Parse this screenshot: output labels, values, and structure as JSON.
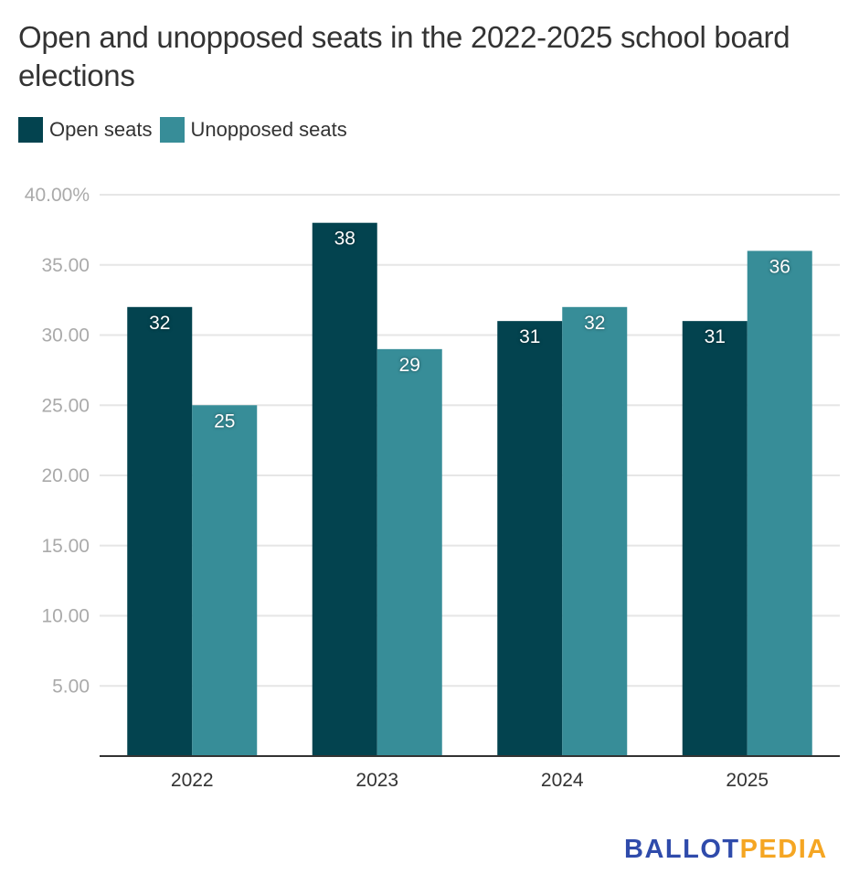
{
  "chart_data": {
    "type": "bar",
    "title": "Open and unopposed seats in the 2022-2025 school board elections",
    "xlabel": "",
    "ylabel": "",
    "categories": [
      "2022",
      "2023",
      "2024",
      "2025"
    ],
    "series": [
      {
        "name": "Open seats",
        "color": "#03434f",
        "values": [
          32,
          38,
          31,
          31
        ]
      },
      {
        "name": "Unopposed seats",
        "color": "#378d98",
        "values": [
          25,
          29,
          32,
          36
        ]
      }
    ],
    "ylim": [
      0,
      40
    ],
    "yticks": [
      {
        "value": 5,
        "label": "5.00"
      },
      {
        "value": 10,
        "label": "10.00"
      },
      {
        "value": 15,
        "label": "15.00"
      },
      {
        "value": 20,
        "label": "20.00"
      },
      {
        "value": 25,
        "label": "25.00"
      },
      {
        "value": 30,
        "label": "30.00"
      },
      {
        "value": 35,
        "label": "35.00"
      },
      {
        "value": 40,
        "label": "40.00%"
      }
    ],
    "grid": true,
    "legend": "top-left",
    "data_labels": true
  },
  "branding": {
    "logo_part1": "BALLOT",
    "logo_part2": "PEDIA",
    "logo_color1": "#2f4bab",
    "logo_color2": "#f5a623"
  }
}
